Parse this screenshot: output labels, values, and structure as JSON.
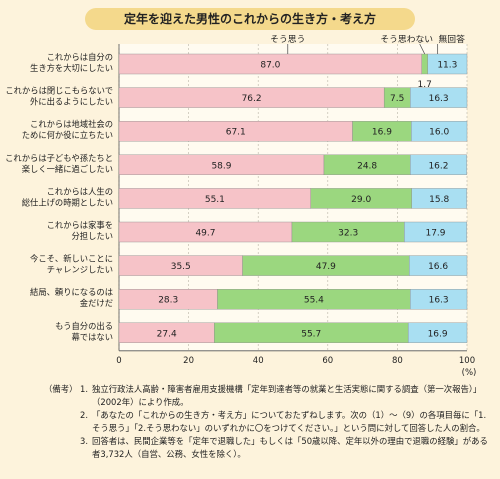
{
  "chart_data": {
    "type": "bar",
    "title": "定年を迎えた男性のこれからの生き方・考え方",
    "categories": [
      "これからは自分の\n生き方を大切にしたい",
      "これからは閉じこもらないで\n外に出るようにしたい",
      "これからは地域社会の\nために何か役に立ちたい",
      "これからは子どもや孫たちと\n楽しく一緒に過ごしたい",
      "これからは人生の\n総仕上げの時期としたい",
      "これからは家事を\n分担したい",
      "今こそ、新しいことに\nチャレンジしたい",
      "結局、頼りになるのは\n金だけだ",
      "もう自分の出る\n幕ではない"
    ],
    "series": [
      {
        "name": "そう思う",
        "color": "#f6c3c8",
        "values": [
          87.0,
          76.2,
          67.1,
          58.9,
          55.1,
          49.7,
          35.5,
          28.3,
          27.4
        ]
      },
      {
        "name": "そう思わない",
        "color": "#9bd77f",
        "values": [
          1.7,
          7.5,
          16.9,
          24.8,
          29.0,
          32.3,
          47.9,
          55.4,
          55.7
        ]
      },
      {
        "name": "無回答",
        "color": "#a9dff2",
        "values": [
          11.3,
          16.3,
          16.0,
          16.2,
          15.8,
          17.9,
          16.6,
          16.3,
          16.9
        ]
      }
    ],
    "value_labels": [
      [
        "87.0",
        "1.7",
        "11.3"
      ],
      [
        "76.2",
        "7.5",
        "16.3"
      ],
      [
        "67.1",
        "16.9",
        "16.0"
      ],
      [
        "58.9",
        "24.8",
        "16.2"
      ],
      [
        "55.1",
        "29.0",
        "15.8"
      ],
      [
        "49.7",
        "32.3",
        "17.9"
      ],
      [
        "35.5",
        "47.9",
        "16.6"
      ],
      [
        "28.3",
        "55.4",
        "16.3"
      ],
      [
        "27.4",
        "55.7",
        "16.9"
      ]
    ],
    "stacked": true,
    "orientation": "horizontal",
    "xlim": [
      0,
      100
    ],
    "xticks": [
      "0",
      "20",
      "40",
      "60",
      "80",
      "100"
    ],
    "xunit": "(%)",
    "grid": true
  },
  "notes": {
    "lead": "（備考）",
    "items": [
      {
        "num": "1.",
        "text": "独立行政法人高齢・障害者雇用支援機構「定年到達者等の就業と生活実態に関する調査（第一次報告）」（2002年）により作成。"
      },
      {
        "num": "2.",
        "text": "「あなたの「これからの生き方・考え方」についておたずねします。次の（1）～（9）の各項目毎に「1.そう思う」「2.そう思わない」のいずれかに〇をつけてください。」という問に対して回答した人の割合。"
      },
      {
        "num": "3.",
        "text": "回答者は、民間企業等を「定年で退職した」もしくは「50歳以降、定年以外の理由で退職の経験」がある者3,732人（自営、公務、女性を除く）。"
      }
    ]
  }
}
